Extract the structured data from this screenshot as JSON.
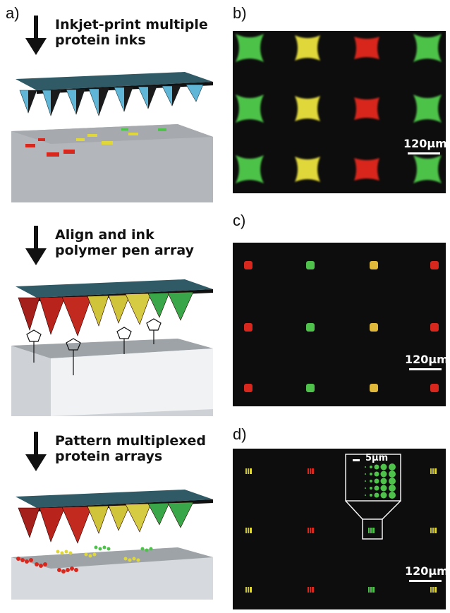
{
  "figure": {
    "panels": {
      "a": {
        "label": "a)",
        "steps": [
          {
            "line1": "Inkjet-print multiple",
            "line2": "protein inks"
          },
          {
            "line1": "Align and ink",
            "line2": "polymer pen array"
          },
          {
            "line1": "Pattern multiplexed",
            "line2": "protein arrays"
          }
        ]
      },
      "b": {
        "label": "b)",
        "scale": "120μm"
      },
      "c": {
        "label": "c)",
        "scale": "120μm"
      },
      "d": {
        "label": "d)",
        "scale": "120μm",
        "inset_scale": "5μm"
      }
    },
    "colors": {
      "green": "#4ec24a",
      "yellow": "#e0d83a",
      "red": "#d8281e",
      "background": "#0d0d0d",
      "pen_cyan": "#5fb6d6"
    }
  }
}
